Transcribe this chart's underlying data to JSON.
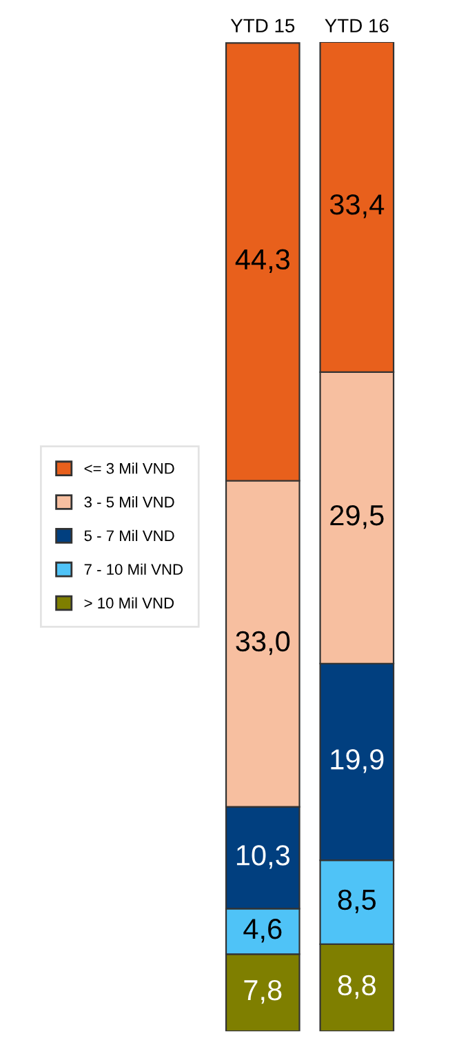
{
  "chart_data": {
    "type": "bar",
    "stacked": true,
    "categories": [
      "YTD 15",
      "YTD 16"
    ],
    "legend": "left",
    "series": [
      {
        "name": "> 10 Mil VND",
        "color": "#7f7f00",
        "values": [
          7.8,
          8.8
        ],
        "value_labels": [
          "7,8",
          "8,8"
        ]
      },
      {
        "name": "7 - 10 Mil VND",
        "color": "#4fc3f7",
        "values": [
          4.6,
          8.5
        ],
        "value_labels": [
          "4,6",
          "8,5"
        ]
      },
      {
        "name": "5 - 7 Mil VND",
        "color": "#013f7f",
        "values": [
          10.3,
          19.9
        ],
        "value_labels": [
          "10,3",
          "19,9"
        ]
      },
      {
        "name": "3 - 5 Mil VND",
        "color": "#f7bfa0",
        "values": [
          33.0,
          29.5
        ],
        "value_labels": [
          "33,0",
          "29,5"
        ]
      },
      {
        "name": "<= 3 Mil VND",
        "color": "#e8601c",
        "values": [
          44.3,
          33.4
        ],
        "value_labels": [
          "44,3",
          "33,4"
        ]
      }
    ]
  }
}
